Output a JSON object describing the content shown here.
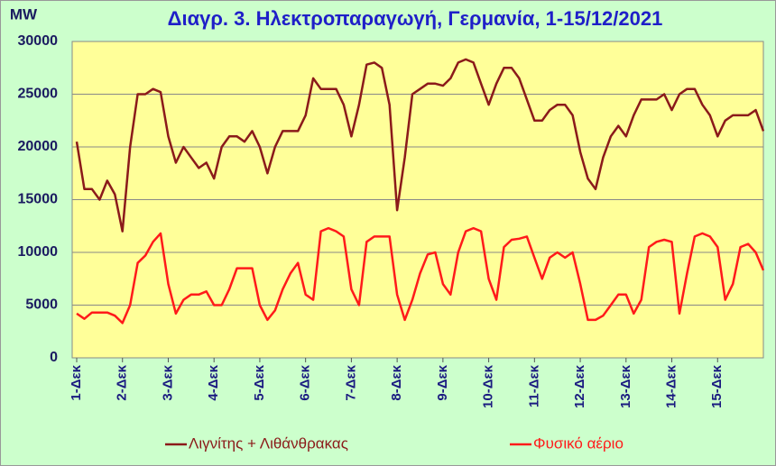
{
  "chart_data": {
    "type": "line",
    "title": "Διαγρ. 3. Ηλεκτροπαραγωγή, Γερμανία, 1-15/12/2021",
    "y_label": "MW",
    "categories": [
      "1-Δεκ",
      null,
      null,
      null,
      null,
      null,
      "2-Δεκ",
      null,
      null,
      null,
      null,
      null,
      "3-Δεκ",
      null,
      null,
      null,
      null,
      null,
      "4-Δεκ",
      null,
      null,
      null,
      null,
      null,
      "5-Δεκ",
      null,
      null,
      null,
      null,
      null,
      "6-Δεκ",
      null,
      null,
      null,
      null,
      null,
      "7-Δεκ",
      null,
      null,
      null,
      null,
      null,
      "8-Δεκ",
      null,
      null,
      null,
      null,
      null,
      "9-Δεκ",
      null,
      null,
      null,
      null,
      null,
      "10-Δεκ",
      null,
      null,
      null,
      null,
      null,
      "11-Δεκ",
      null,
      null,
      null,
      null,
      null,
      "12-Δεκ",
      null,
      null,
      null,
      null,
      null,
      "13-Δεκ",
      null,
      null,
      null,
      null,
      null,
      "14-Δεκ",
      null,
      null,
      null,
      null,
      null,
      "15-Δεκ",
      null,
      null,
      null,
      null,
      null,
      null
    ],
    "series": [
      {
        "name": "Λιγνίτης + Λιθάνθρακας",
        "color": "#8b1a1a",
        "values": [
          20500,
          16000,
          16000,
          15000,
          16800,
          15500,
          12000,
          20000,
          25000,
          25000,
          25500,
          25200,
          21000,
          18500,
          20000,
          19000,
          18000,
          18500,
          17000,
          20000,
          21000,
          21000,
          20500,
          21500,
          20000,
          17500,
          20000,
          21500,
          21500,
          21500,
          23000,
          26500,
          25500,
          25500,
          25500,
          24000,
          21000,
          24000,
          27800,
          28000,
          27500,
          24000,
          14000,
          19000,
          25000,
          25500,
          26000,
          26000,
          25800,
          26500,
          28000,
          28300,
          28000,
          26000,
          24000,
          26000,
          27500,
          27500,
          26500,
          24500,
          22500,
          22500,
          23500,
          24000,
          24000,
          23000,
          19500,
          17000,
          16000,
          19000,
          21000,
          22000,
          21000,
          23000,
          24500,
          24500,
          24500,
          25000,
          23500,
          25000,
          25500,
          25500,
          24000,
          23000,
          21000,
          22500,
          23000,
          23000,
          23000,
          23500,
          21500
        ]
      },
      {
        "name": "Φυσικό αέριο",
        "color": "#ff1a1a",
        "values": [
          4200,
          3700,
          4300,
          4300,
          4300,
          4000,
          3300,
          5000,
          9000,
          9700,
          11000,
          11800,
          7000,
          4200,
          5500,
          6000,
          6000,
          6300,
          5000,
          5000,
          6500,
          8500,
          8500,
          8500,
          5000,
          3600,
          4500,
          6500,
          8000,
          9000,
          6000,
          5500,
          12000,
          12300,
          12000,
          11500,
          6500,
          5000,
          11000,
          11500,
          11500,
          11500,
          6000,
          3600,
          5500,
          8000,
          9800,
          10000,
          7000,
          6000,
          10000,
          12000,
          12300,
          12000,
          7500,
          5500,
          10500,
          11200,
          11300,
          11500,
          9500,
          7500,
          9500,
          10000,
          9500,
          10000,
          7000,
          3600,
          3600,
          4000,
          5000,
          6000,
          6000,
          4200,
          5500,
          10500,
          11000,
          11200,
          11000,
          4200,
          8000,
          11500,
          11800,
          11500,
          10500,
          5500,
          7000,
          10500,
          10800,
          10000,
          8300
        ]
      }
    ],
    "ylim": [
      0,
      30000
    ],
    "yticks": [
      0,
      5000,
      10000,
      15000,
      20000,
      25000,
      30000
    ],
    "grid": true,
    "legend": "bottom"
  }
}
